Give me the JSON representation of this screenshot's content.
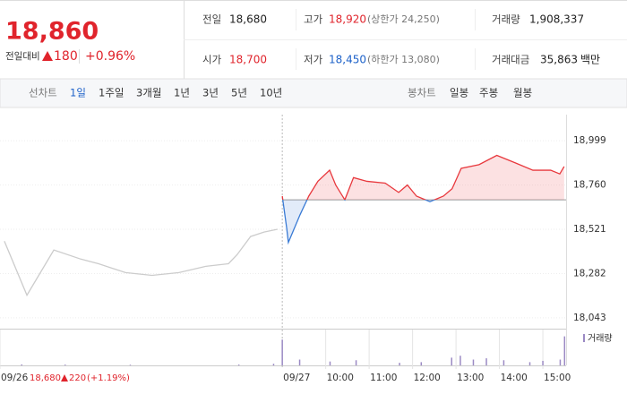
{
  "header": {
    "price": "18,860",
    "change_label": "전일대비",
    "change": "180",
    "change_pct": "+0.96%",
    "stats": [
      [
        {
          "label": "전일",
          "value": "18,680"
        },
        {
          "label": "고가",
          "value": "18,920",
          "note": "(상한가 24,250)"
        },
        {
          "label": "거래량",
          "value": "1,908,337"
        }
      ],
      [
        {
          "label": "시가",
          "value": "18,700"
        },
        {
          "label": "저가",
          "value": "18,450",
          "note": "(하한가 13,080)"
        },
        {
          "label": "거래대금",
          "value": "35,863",
          "unit": "백만"
        }
      ]
    ]
  },
  "tabs": {
    "line_label": "선차트",
    "line": [
      "1일",
      "1주일",
      "3개월",
      "1년",
      "3년",
      "5년",
      "10년"
    ],
    "candle_label": "봉차트",
    "candle": [
      "일봉",
      "주봉",
      "월봉"
    ]
  },
  "footer": {
    "close": "18,680",
    "change": "220",
    "change_pct": "(+1.19%)"
  },
  "chart_data": {
    "type": "line",
    "baseline": 18680,
    "series": [
      {
        "color": "#cccccc",
        "x": [
          0.1,
          0.62,
          1.24,
          1.86,
          2.27,
          2.89,
          3.5,
          4.12,
          4.74,
          5.26,
          5.46,
          5.77,
          6.08,
          6.39
        ],
        "values": [
          18457,
          18165,
          18409,
          18360,
          18335,
          18287,
          18272,
          18287,
          18321,
          18335,
          18384,
          18482,
          18506,
          18521
        ]
      },
      {
        "color": "#e8383d",
        "below_color": "#3a7bd5",
        "x": [
          6.5,
          6.6,
          6.64,
          6.91,
          7.11,
          7.32,
          7.59,
          7.73,
          7.94,
          8.14,
          8.45,
          8.87,
          9.18,
          9.38,
          9.59,
          9.9,
          10.21,
          10.41,
          10.62,
          11.03,
          11.44,
          11.86,
          12.27,
          12.68,
          12.89,
          12.99
        ],
        "values": [
          18700,
          18530,
          18450,
          18600,
          18700,
          18780,
          18840,
          18760,
          18680,
          18800,
          18780,
          18770,
          18720,
          18760,
          18700,
          18670,
          18700,
          18740,
          18850,
          18870,
          18920,
          18880,
          18840,
          18840,
          18820,
          18860
        ]
      }
    ],
    "xlim": [
      0,
      13.2
    ],
    "xticks": [
      {
        "value": 0,
        "label": "09/26"
      },
      {
        "value": 6.5,
        "label": "09/27"
      },
      {
        "value": 7.5,
        "label": "10:00"
      },
      {
        "value": 8.5,
        "label": "11:00"
      },
      {
        "value": 9.5,
        "label": "12:00"
      },
      {
        "value": 10.5,
        "label": "13:00"
      },
      {
        "value": 11.5,
        "label": "14:00"
      },
      {
        "value": 12.5,
        "label": "15:00"
      }
    ],
    "ylim": [
      17994,
      19140
    ],
    "yticks": [
      {
        "value": 18043,
        "label": "18,043"
      },
      {
        "value": 18282,
        "label": "18,282"
      },
      {
        "value": 18521,
        "label": "18,521"
      },
      {
        "value": 18760,
        "label": "18,760"
      },
      {
        "value": 18999,
        "label": "18,999"
      }
    ],
    "volume": {
      "name": "거래량",
      "color": "#9b8ac4",
      "ylim": [
        0,
        50000
      ],
      "x": [
        0.5,
        1.5,
        3.0,
        5.5,
        6.3,
        6.5,
        6.9,
        7.6,
        8.2,
        9.2,
        9.7,
        10.4,
        10.6,
        10.9,
        11.2,
        11.6,
        12.2,
        12.5,
        12.9,
        13.0
      ],
      "values": [
        1500,
        1200,
        1000,
        1300,
        2500,
        40000,
        9000,
        6000,
        8000,
        4000,
        5000,
        12000,
        15000,
        9000,
        11000,
        8000,
        5000,
        7000,
        9000,
        45000
      ]
    }
  }
}
